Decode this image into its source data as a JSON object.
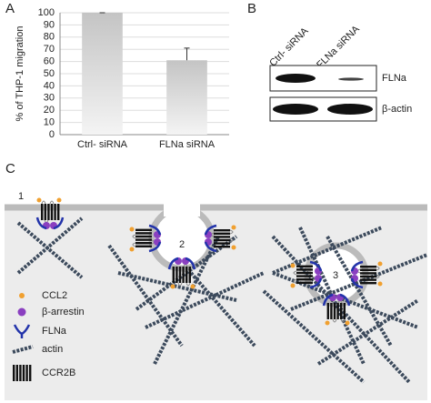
{
  "panels": {
    "a": "A",
    "b": "B",
    "c": "C"
  },
  "chart_data": {
    "type": "bar",
    "ylabel": "% of THP-1 migration",
    "categories": [
      "Ctrl- siRNA",
      "FLNa siRNA"
    ],
    "values": [
      100,
      61
    ],
    "errors": [
      0,
      10
    ],
    "color": "#c4c4c4",
    "ylim": [
      0,
      100
    ],
    "yticks": [
      0,
      10,
      20,
      30,
      40,
      50,
      60,
      70,
      80,
      90,
      100
    ],
    "grid": true
  },
  "blot": {
    "columns": [
      "Ctrl- siRNA",
      "FLNa siRNA"
    ],
    "rows": [
      "FLNa",
      "β-actin"
    ]
  },
  "diagram": {
    "steps": [
      "1",
      "2",
      "3"
    ],
    "legend": [
      "CCL2",
      "β-arrestin",
      "FLNa",
      "actin",
      "CCR2B"
    ]
  }
}
